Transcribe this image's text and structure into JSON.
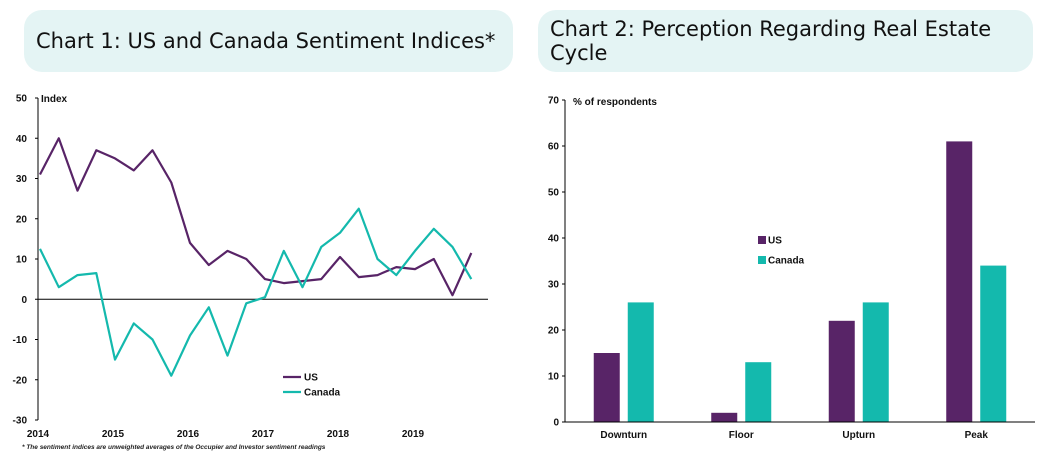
{
  "colors": {
    "us": "#582467",
    "canada": "#14b9ad",
    "title_bg": "#e4f4f4"
  },
  "chart_data": [
    {
      "type": "line",
      "title": "Chart 1: US and Canada Sentiment Indices*",
      "ylabel": "Index",
      "xlabel": "",
      "ylim": [
        -30,
        50
      ],
      "yticks": [
        -30,
        -20,
        -10,
        0,
        10,
        20,
        30,
        40,
        50
      ],
      "x_tick_labels": [
        "2014",
        "2015",
        "2016",
        "2017",
        "2018",
        "2019"
      ],
      "x": [
        "2014Q1",
        "2014Q2",
        "2014Q3",
        "2014Q4",
        "2015Q1",
        "2015Q2",
        "2015Q3",
        "2015Q4",
        "2016Q1",
        "2016Q2",
        "2016Q3",
        "2016Q4",
        "2017Q1",
        "2017Q2",
        "2017Q3",
        "2017Q4",
        "2018Q1",
        "2018Q2",
        "2018Q3",
        "2018Q4",
        "2019Q1",
        "2019Q2",
        "2019Q3",
        "2019Q4"
      ],
      "series": [
        {
          "name": "US",
          "values": [
            31,
            40,
            27,
            37,
            35,
            32,
            37,
            29,
            14,
            8.5,
            12,
            10,
            5,
            4,
            4.5,
            5,
            10.5,
            5.5,
            6,
            8,
            7.5,
            10,
            1,
            11.5
          ]
        },
        {
          "name": "Canada",
          "values": [
            12.5,
            3,
            6,
            6.5,
            -15,
            -6,
            -10,
            -19,
            -9,
            -2,
            -14,
            -1,
            0.5,
            12,
            3,
            13,
            16.5,
            22.5,
            10,
            6,
            12,
            17.5,
            13,
            5
          ]
        }
      ],
      "legend_position": "bottom-right",
      "footnote": "* The sentiment indices are unweighted averages of the Occupier and Investor sentiment readings"
    },
    {
      "type": "bar",
      "title": "Chart 2: Perception Regarding Real Estate Cycle",
      "ylabel": "% of respondents",
      "xlabel": "",
      "ylim": [
        0,
        70
      ],
      "yticks": [
        0,
        10,
        20,
        30,
        40,
        50,
        60,
        70
      ],
      "categories": [
        "Downturn",
        "Floor",
        "Upturn",
        "Peak"
      ],
      "series": [
        {
          "name": "US",
          "values": [
            15,
            2,
            22,
            61
          ]
        },
        {
          "name": "Canada",
          "values": [
            26,
            13,
            26,
            34
          ]
        }
      ],
      "legend_position": "center"
    }
  ]
}
